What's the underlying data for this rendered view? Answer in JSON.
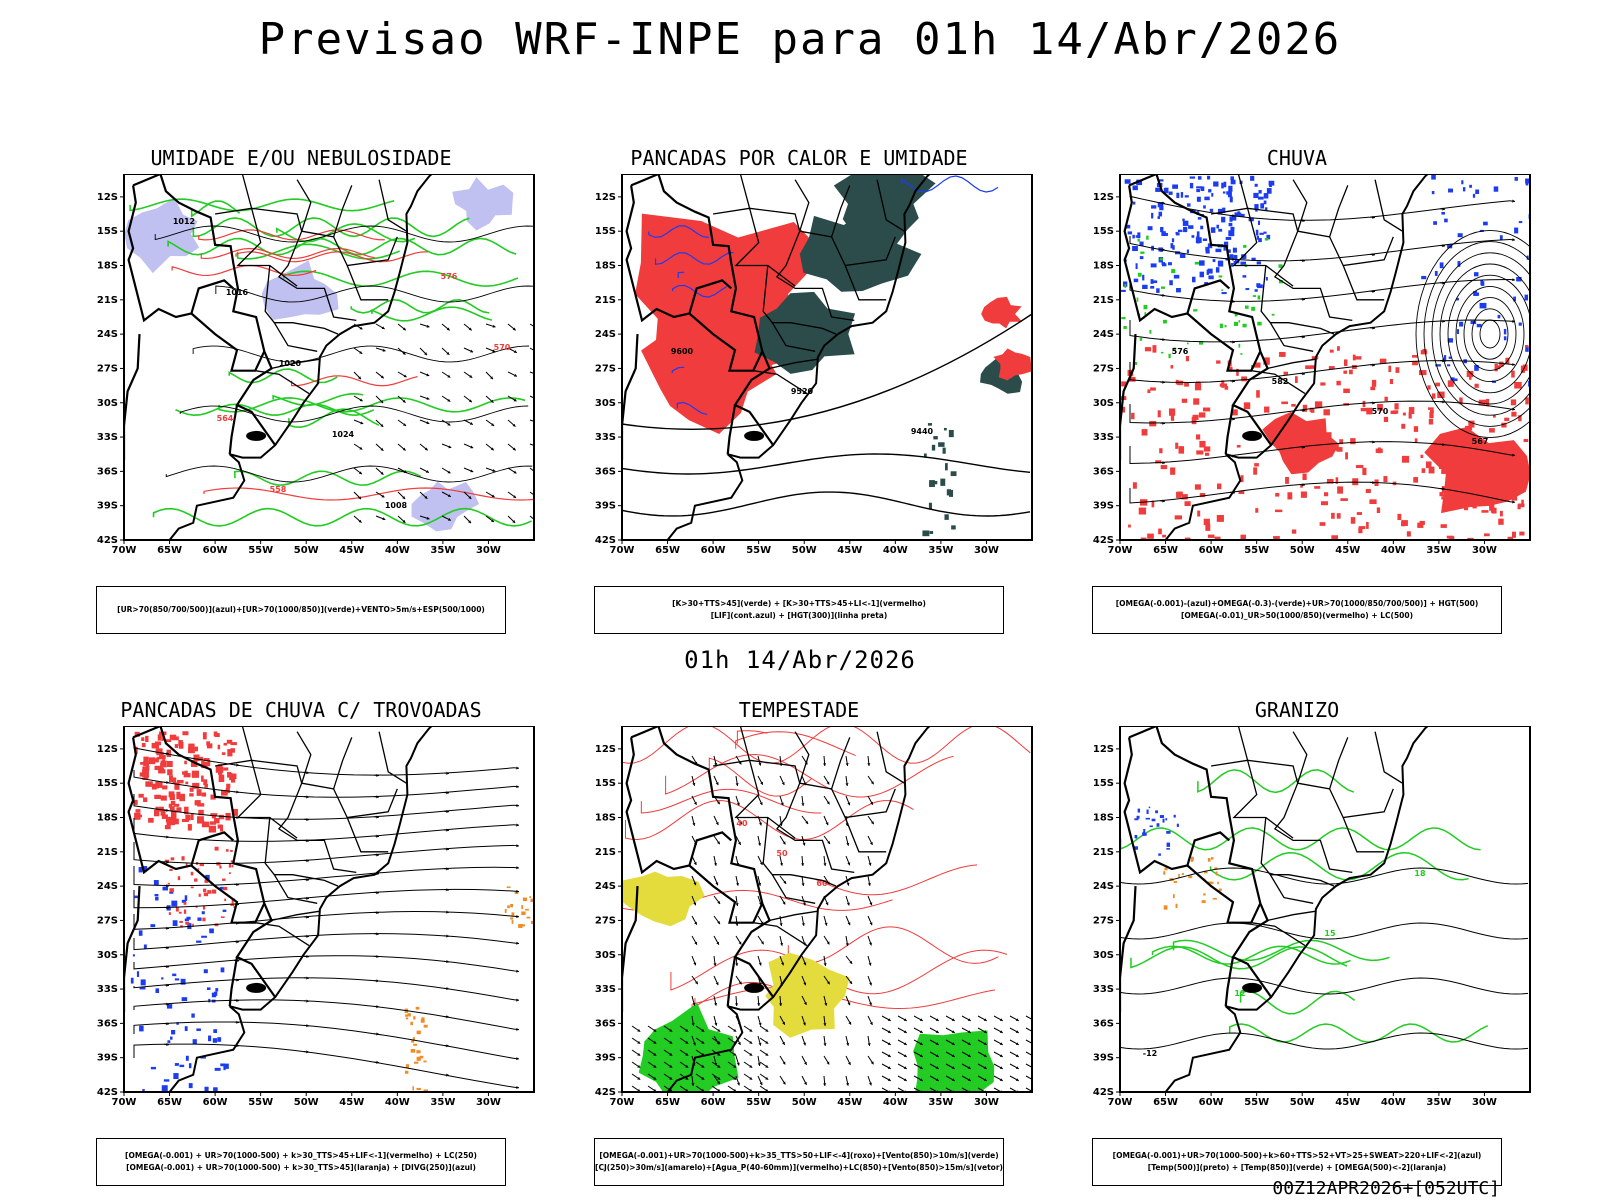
{
  "header": {
    "title": "Previsao WRF-INPE  para 01h 14/Abr/2026"
  },
  "mid_title": "01h 14/Abr/2026",
  "footer": "00Z12APR2026+[052UTC]",
  "axes": {
    "lon_labels": [
      "70W",
      "65W",
      "60W",
      "55W",
      "50W",
      "45W",
      "40W",
      "35W",
      "30W"
    ],
    "lat_labels": [
      "12S",
      "15S",
      "18S",
      "21S",
      "24S",
      "27S",
      "30S",
      "33S",
      "36S",
      "39S",
      "42S"
    ]
  },
  "colors": {
    "red": "#f03c3c",
    "green": "#22cc22",
    "blue": "#1c3cf0",
    "lavender": "#b0b0ee",
    "teal": "#2c4c4c",
    "yellow": "#e4dc3c",
    "orange": "#f08c28",
    "black": "#000000"
  },
  "panels": [
    {
      "id": "umidade",
      "title": "UMIDADE E/OU NEBULOSIDADE",
      "legend": [
        "[UR>70(850/700/500)](azul)+[UR>70(1000/850)](verde)+VENTO>5m/s+ESP(500/1000)"
      ],
      "contour_labels": [
        "1012",
        "1016",
        "1020",
        "1024",
        "1008",
        "576",
        "570",
        "564",
        "558"
      ]
    },
    {
      "id": "pancadas_calor",
      "title": "PANCADAS POR CALOR E UMIDADE",
      "legend": [
        "[K>30+TTS>45](verde) + [K>30+TTS>45+LI<-1](vermelho)",
        "[LIF](cont.azul) + [HGT(300)](linha preta)"
      ],
      "contour_labels": [
        "9600",
        "9520",
        "9440"
      ]
    },
    {
      "id": "chuva",
      "title": "CHUVA",
      "legend": [
        "[OMEGA(-0.001)-(azul)+OMEGA(-0.3)-(verde)+UR>70(1000/850/700/500)] + HGT(500)",
        "[OMEGA(-0.01)_UR>50(1000/850)(vermelho) + LC(500)"
      ],
      "contour_labels": [
        "576",
        "582",
        "570",
        "567"
      ]
    },
    {
      "id": "pancadas_trovoadas",
      "title": "PANCADAS DE CHUVA C/ TROVOADAS",
      "legend": [
        "[OMEGA(-0.001) + UR>70(1000-500) + k>30_TTS>45+LIF<-1](vermelho) + LC(250)",
        "[OMEGA(-0.001) + UR>70(1000-500) + k>30_TTS>45](laranja) + [DIVG(250)](azul)"
      ],
      "contour_labels": []
    },
    {
      "id": "tempestade",
      "title": "TEMPESTADE",
      "legend": [
        "[OMEGA(-0.001)+UR>70(1000-500)+k>35_TTS>50+LIF<-4](roxo)+[Vento(850)>10m/s](verde)",
        "[CJ(250)>30m/s](amarelo)+[Agua_P(40-60mm)](vermelho)+LC(850)+[Vento(850)>15m/s](vetor)"
      ],
      "contour_labels": [
        "40",
        "50",
        "60"
      ]
    },
    {
      "id": "granizo",
      "title": "GRANIZO",
      "legend": [
        "[OMEGA(-0.001)+UR>70(1000-500)+k>60+TTS>52+VT>25+SWEAT>220+LIF<-2](azul)",
        "[Temp(500)](preto) + [Temp(850)](verde) + [OMEGA(500)<-2](laranja)"
      ],
      "contour_labels": [
        "-12",
        "12",
        "15",
        "18"
      ]
    }
  ]
}
